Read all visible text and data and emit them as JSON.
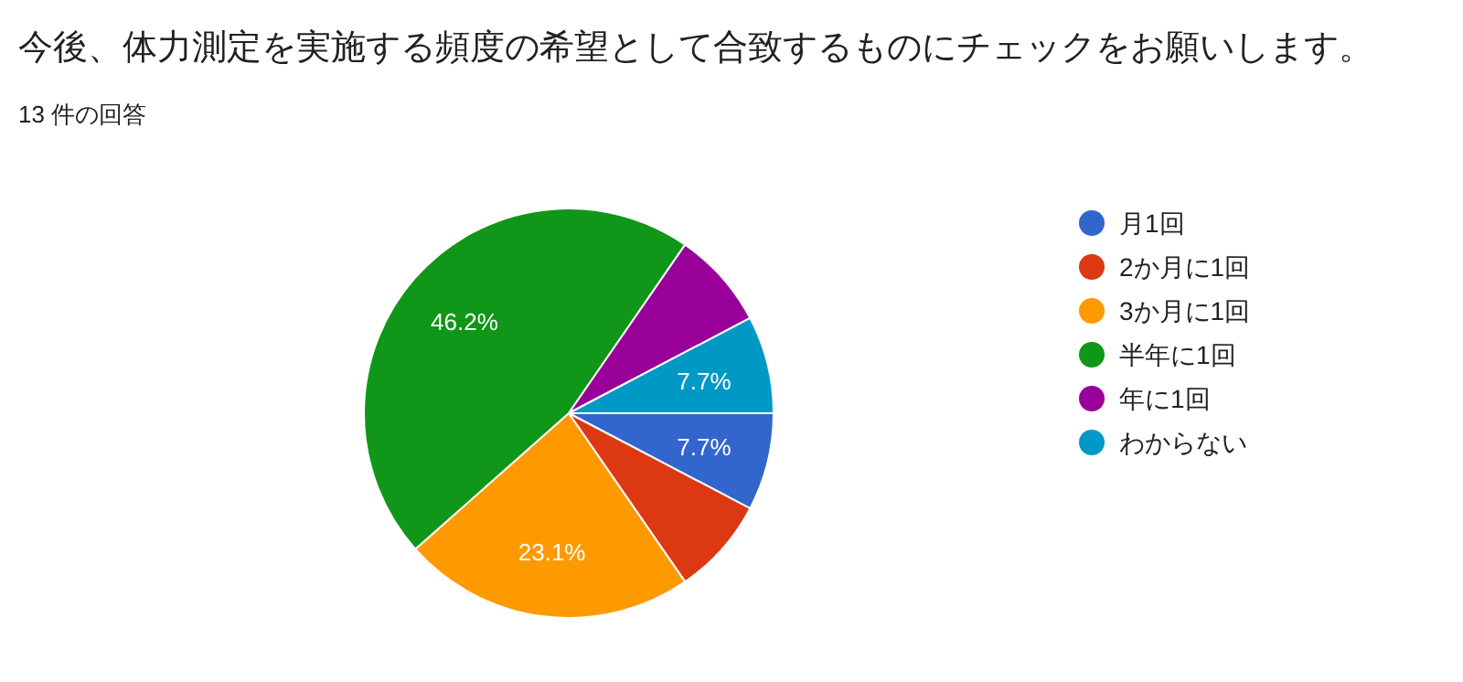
{
  "chart_data": {
    "type": "pie",
    "title": "今後、体力測定を実施する頻度の希望として合致するものにチェックをお願いします。",
    "subtitle": "13 件の回答",
    "categories": [
      "月1回",
      "2か月に1回",
      "3か月に1回",
      "半年に1回",
      "年に1回",
      "わからない"
    ],
    "values": [
      7.7,
      7.7,
      23.1,
      46.2,
      7.7,
      7.7
    ],
    "colors": [
      "#3366cc",
      "#dc3912",
      "#ff9900",
      "#109618",
      "#990099",
      "#0099c6"
    ],
    "value_labels": [
      "7.7%",
      null,
      "23.1%",
      "46.2%",
      null,
      "7.7%"
    ],
    "legend": "right"
  }
}
